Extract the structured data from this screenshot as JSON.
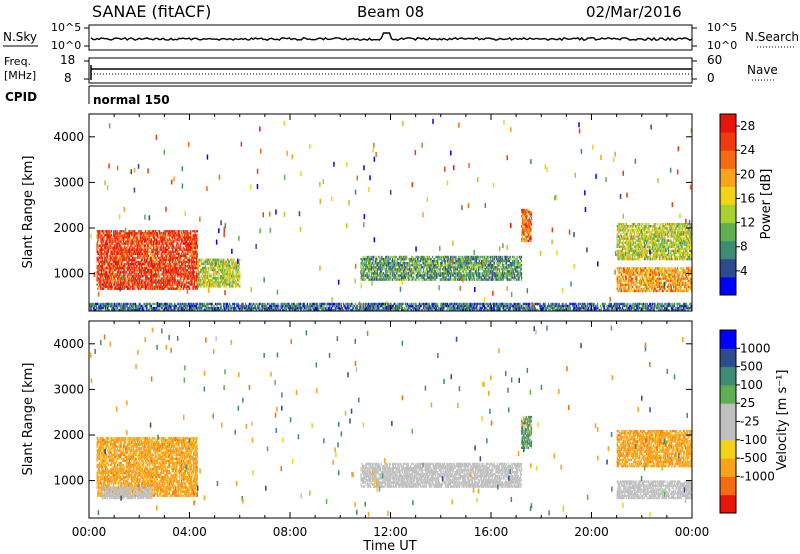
{
  "header": {
    "title": "SANAE (fitACF)",
    "beam": "Beam 08",
    "date": "02/Mar/2016"
  },
  "status_panels": {
    "noise": {
      "left_label": "N.Sky",
      "left_ticks": [
        "10^5",
        "10^0"
      ],
      "right_label": "N.Search",
      "right_ticks": [
        "10^5",
        "10^0"
      ]
    },
    "freq": {
      "left_label_top": "Freq.",
      "left_label_unit": "[MHz]",
      "left_ticks": [
        "18",
        "8"
      ],
      "right_label": "Nave",
      "right_ticks": [
        "60",
        "0"
      ]
    },
    "cpid": {
      "label": "CPID",
      "program": "normal 150"
    }
  },
  "colors": {
    "power_scale": [
      "#0000ff",
      "#2c4c8c",
      "#3f8a73",
      "#5fae4f",
      "#a6d12e",
      "#f1d318",
      "#f9a21c",
      "#f46c12",
      "#ef3a0e",
      "#e8150a"
    ],
    "velocity_scale": [
      "#e8150a",
      "#f46c12",
      "#f9a21c",
      "#f1d318",
      "#c0c0c0",
      "#c0c0c0",
      "#5fae4f",
      "#3f8a73",
      "#2c4c8c",
      "#0000ff"
    ]
  },
  "chart_data": [
    {
      "type": "heatmap",
      "name": "power",
      "ylabel": "Slant Range [km]",
      "xlabel": "Time UT",
      "xlim": [
        0,
        24
      ],
      "ylim": [
        180,
        4500
      ],
      "x_ticks": [
        "00:00",
        "04:00",
        "08:00",
        "12:00",
        "16:00",
        "20:00",
        "00:00"
      ],
      "y_ticks": [
        "1000",
        "2000",
        "3000",
        "4000"
      ],
      "colorbar": {
        "label": "Power [dB]",
        "ticks": [
          "4",
          "8",
          "12",
          "16",
          "20",
          "24",
          "28"
        ],
        "range": [
          0,
          30
        ]
      },
      "regions": [
        {
          "t0": 0.3,
          "t1": 4.3,
          "r0": 650,
          "r1": 1950,
          "value": 26,
          "desc": "strong echoes"
        },
        {
          "t0": 4.3,
          "t1": 6.0,
          "r0": 700,
          "r1": 1300,
          "value": 14
        },
        {
          "t0": 10.8,
          "t1": 17.2,
          "r0": 850,
          "r1": 1350,
          "value": 9
        },
        {
          "t0": 17.2,
          "t1": 17.6,
          "r0": 1700,
          "r1": 2400,
          "value": 22
        },
        {
          "t0": 21.0,
          "t1": 24.0,
          "r0": 1300,
          "r1": 2100,
          "value": 14
        },
        {
          "t0": 21.0,
          "t1": 24.0,
          "r0": 600,
          "r1": 1100,
          "value": 20
        },
        {
          "t0": 0.0,
          "t1": 24.0,
          "r0": 180,
          "r1": 350,
          "value": 6
        }
      ]
    },
    {
      "type": "heatmap",
      "name": "velocity",
      "ylabel": "Slant Range [km]",
      "xlabel": "Time UT",
      "xlim": [
        0,
        24
      ],
      "ylim": [
        180,
        4500
      ],
      "x_ticks": [
        "00:00",
        "04:00",
        "08:00",
        "12:00",
        "16:00",
        "20:00",
        "00:00"
      ],
      "y_ticks": [
        "1000",
        "2000",
        "3000",
        "4000"
      ],
      "colorbar": {
        "label": "Velocity [m s⁻¹]",
        "ticks": [
          "1000",
          "500",
          "100",
          "25",
          "-25",
          "-100",
          "-500",
          "-1000"
        ]
      },
      "regions": [
        {
          "t0": 0.3,
          "t1": 4.3,
          "r0": 650,
          "r1": 1950,
          "value": -300
        },
        {
          "t0": 0.5,
          "t1": 2.5,
          "r0": 600,
          "r1": 850,
          "value": 0
        },
        {
          "t0": 10.8,
          "t1": 17.2,
          "r0": 850,
          "r1": 1350,
          "value": 0
        },
        {
          "t0": 17.2,
          "t1": 17.6,
          "r0": 1700,
          "r1": 2400,
          "value": 100
        },
        {
          "t0": 21.0,
          "t1": 24.0,
          "r0": 1300,
          "r1": 2100,
          "value": -300
        },
        {
          "t0": 21.0,
          "t1": 24.0,
          "r0": 600,
          "r1": 1000,
          "value": 0
        }
      ]
    }
  ],
  "time_axis": {
    "ticks": [
      "00:00",
      "04:00",
      "08:00",
      "12:00",
      "16:00",
      "20:00",
      "00:00"
    ],
    "label": "Time UT"
  }
}
